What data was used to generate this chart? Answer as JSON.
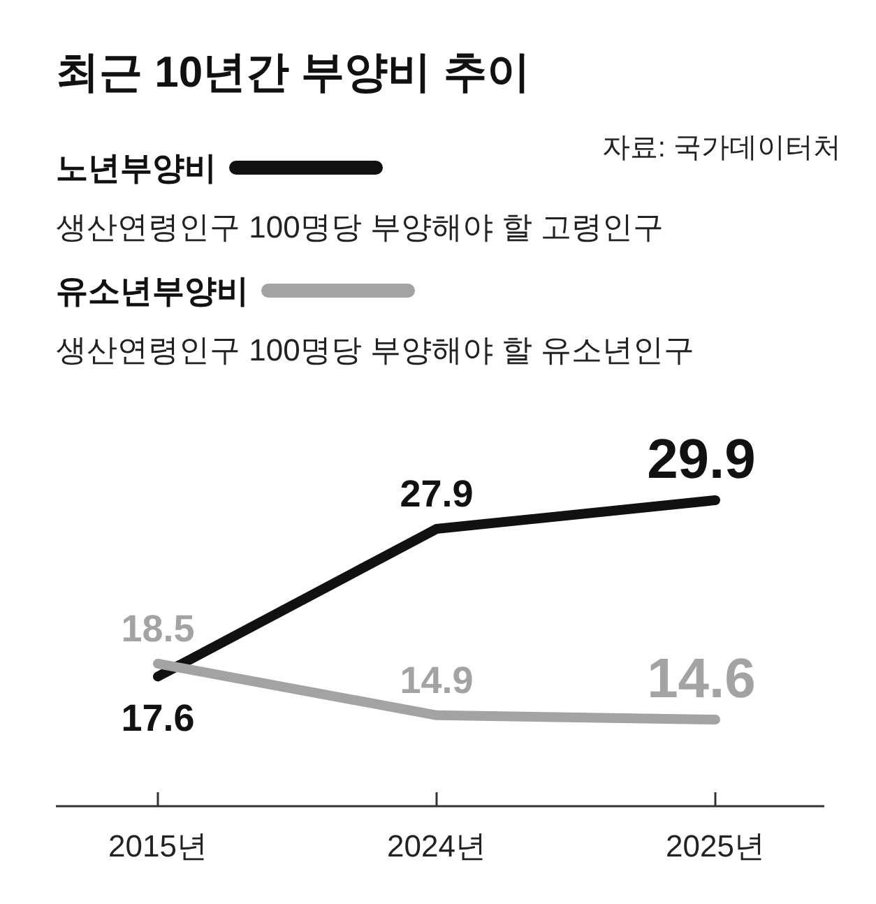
{
  "chart_data": {
    "type": "line",
    "title": "최근 10년간 부양비 추이",
    "categories": [
      "2015년",
      "2024년",
      "2025년"
    ],
    "series": [
      {
        "name": "노년부양비",
        "color": "#111111",
        "values": [
          17.6,
          27.9,
          29.9
        ]
      },
      {
        "name": "유소년부양비",
        "color": "#a3a3a3",
        "values": [
          18.5,
          14.9,
          14.6
        ]
      }
    ],
    "annotations": [
      "생산연령인구 100명당 부양해야 할 고령인구",
      "생산연령인구 100명당 부양해야 할 유소년인구",
      "자료: 국가데이터처"
    ],
    "data_labels": true,
    "legend": "top left",
    "grid": false,
    "marker": "none",
    "line_style": "solid"
  }
}
